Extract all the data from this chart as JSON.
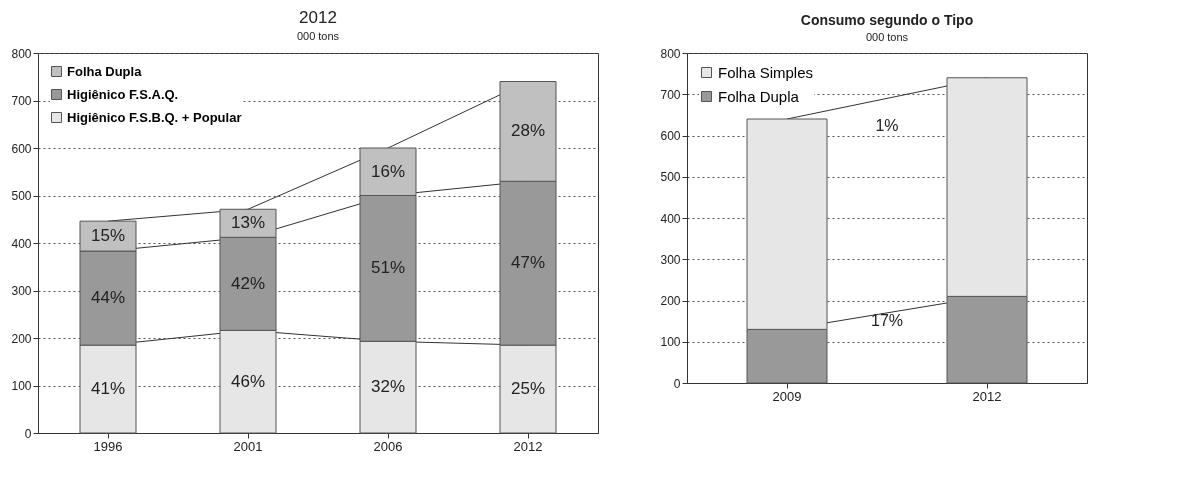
{
  "chart_data": [
    {
      "type": "bar",
      "title": "2012",
      "ylabel": "000 tons",
      "categories": [
        "1996",
        "2001",
        "2006",
        "2012"
      ],
      "stacked": true,
      "ylim": [
        0,
        800
      ],
      "yticks": [
        0,
        100,
        200,
        300,
        400,
        500,
        600,
        700,
        800
      ],
      "grid": "y",
      "legend": "top left",
      "series": [
        {
          "name": "Higiênico F.S.B.Q. + Popular",
          "color": "#e6e6e6",
          "values": [
            185,
            216,
            193,
            185
          ]
        },
        {
          "name": "Higiênico F.S.A.Q.",
          "color": "#999999",
          "values": [
            198,
            196,
            307,
            345
          ]
        },
        {
          "name": "Folha Dupla",
          "color": "#c0c0c0",
          "values": [
            63,
            59,
            100,
            210
          ]
        }
      ],
      "annotations": [
        "41%",
        "46%",
        "32%",
        "25%",
        "44%",
        "42%",
        "51%",
        "47%",
        "15%",
        "13%",
        "16%",
        "28%"
      ]
    },
    {
      "type": "bar",
      "title": "Consumo segundo o Tipo",
      "ylabel": "000 tons",
      "categories": [
        "2009",
        "2012"
      ],
      "stacked": true,
      "ylim": [
        0,
        800
      ],
      "yticks": [
        0,
        100,
        200,
        300,
        400,
        500,
        600,
        700,
        800
      ],
      "grid": "y",
      "legend": "top left",
      "series": [
        {
          "name": "Folha Dupla",
          "color": "#999999",
          "values": [
            130,
            210
          ]
        },
        {
          "name": "Folha Simples",
          "color": "#e6e6e6",
          "values": [
            510,
            530
          ]
        }
      ],
      "annotations": [
        "1%",
        "17%"
      ]
    }
  ]
}
